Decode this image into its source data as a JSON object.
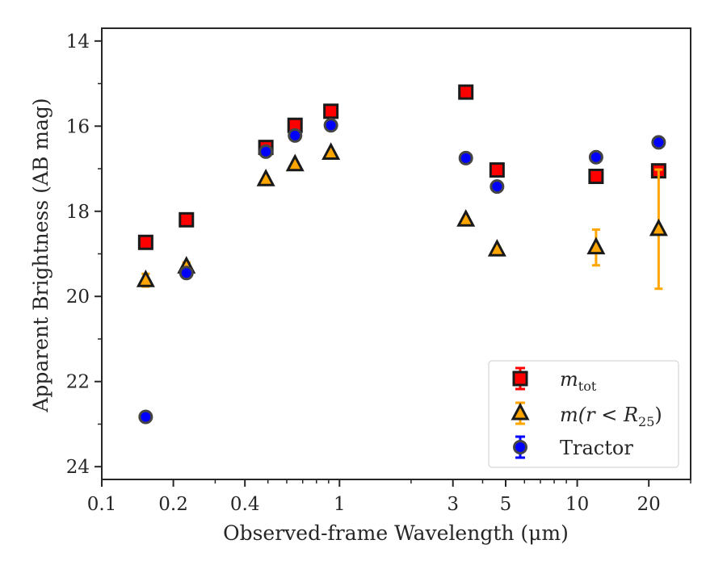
{
  "chart_data": {
    "type": "scatter",
    "title": "",
    "xlabel": "Observed-frame Wavelength (μm)",
    "ylabel": "Apparent Brightness (AB mag)",
    "x_scale": "log",
    "xlim": [
      0.1,
      30
    ],
    "ylim": [
      24.3,
      13.7
    ],
    "y_inverted": true,
    "x_ticks": [
      0.1,
      0.2,
      0.4,
      1,
      3,
      5,
      10,
      20
    ],
    "x_tick_labels": [
      "0.1",
      "0.2",
      "0.4",
      "1",
      "3",
      "5",
      "10",
      "20"
    ],
    "y_ticks": [
      14,
      16,
      18,
      20,
      22,
      24
    ],
    "y_tick_labels": [
      "14",
      "16",
      "18",
      "20",
      "22",
      "24"
    ],
    "grid": false,
    "legend_position": "lower-right",
    "series": [
      {
        "name": "m_tot",
        "legend_main": "m",
        "legend_sub": "tot",
        "marker": "square",
        "color": "#ff0000",
        "points": [
          {
            "x": 0.153,
            "y": 18.73,
            "err": 0.05
          },
          {
            "x": 0.227,
            "y": 18.2,
            "err": 0.05
          },
          {
            "x": 0.49,
            "y": 16.5,
            "err": 0.05
          },
          {
            "x": 0.65,
            "y": 15.98,
            "err": 0.05
          },
          {
            "x": 0.92,
            "y": 15.65,
            "err": 0.05
          },
          {
            "x": 3.4,
            "y": 15.2,
            "err": 0.05
          },
          {
            "x": 4.6,
            "y": 17.03,
            "err": 0.05
          },
          {
            "x": 12.0,
            "y": 17.18,
            "err": 0.05
          },
          {
            "x": 22.0,
            "y": 17.05,
            "err": 0.05
          }
        ]
      },
      {
        "name": "m(r < R25)",
        "legend_main": "m(r < R",
        "legend_sub": "25",
        "legend_close": ")",
        "marker": "triangle",
        "color": "#ffa500",
        "points": [
          {
            "x": 0.153,
            "y": 19.62,
            "err": 0.15
          },
          {
            "x": 0.227,
            "y": 19.3,
            "err": 0.1
          },
          {
            "x": 0.49,
            "y": 17.25,
            "err": 0.05
          },
          {
            "x": 0.65,
            "y": 16.9,
            "err": 0.05
          },
          {
            "x": 0.92,
            "y": 16.63,
            "err": 0.05
          },
          {
            "x": 3.4,
            "y": 18.2,
            "err": 0.05
          },
          {
            "x": 4.6,
            "y": 18.9,
            "err": 0.05
          },
          {
            "x": 12.0,
            "y": 18.85,
            "err": 0.42
          },
          {
            "x": 22.0,
            "y": 18.42,
            "err": 1.4
          }
        ]
      },
      {
        "name": "Tractor",
        "marker": "circle",
        "color": "#0000ff",
        "points": [
          {
            "x": 0.153,
            "y": 22.83,
            "err": 0.05
          },
          {
            "x": 0.227,
            "y": 19.45,
            "err": 0.05
          },
          {
            "x": 0.49,
            "y": 16.6,
            "err": 0.05
          },
          {
            "x": 0.65,
            "y": 16.22,
            "err": 0.05
          },
          {
            "x": 0.92,
            "y": 15.98,
            "err": 0.05
          },
          {
            "x": 3.4,
            "y": 16.75,
            "err": 0.05
          },
          {
            "x": 4.6,
            "y": 17.42,
            "err": 0.05
          },
          {
            "x": 12.0,
            "y": 16.73,
            "err": 0.05
          },
          {
            "x": 22.0,
            "y": 16.38,
            "err": 0.05
          }
        ]
      }
    ]
  }
}
